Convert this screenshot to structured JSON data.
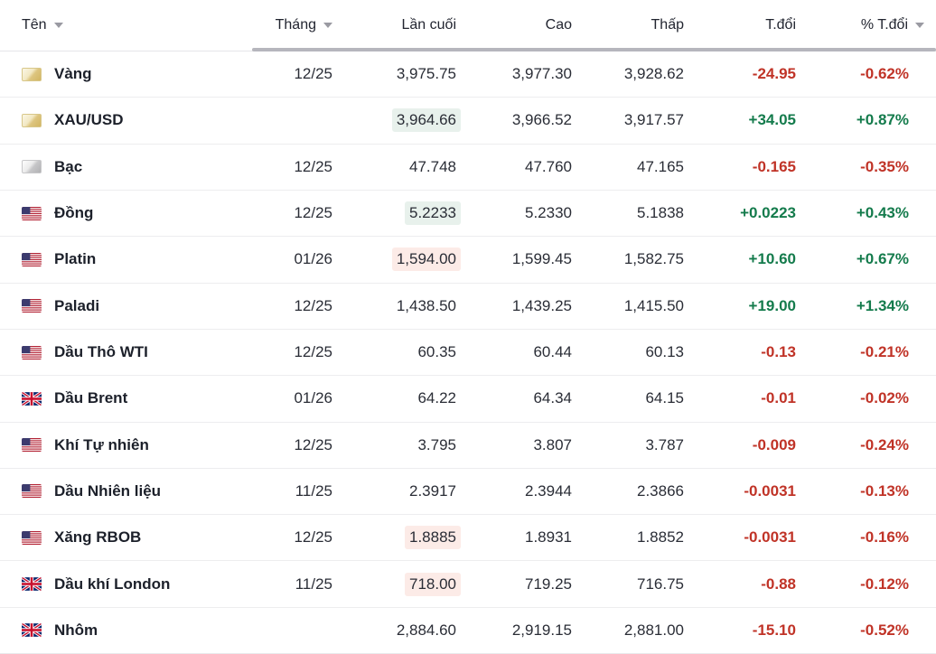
{
  "table": {
    "columns": [
      {
        "key": "name",
        "label": "Tên",
        "sortable": true
      },
      {
        "key": "month",
        "label": "Tháng",
        "sortable": true
      },
      {
        "key": "last",
        "label": "Lần cuối",
        "sortable": false
      },
      {
        "key": "high",
        "label": "Cao",
        "sortable": false
      },
      {
        "key": "low",
        "label": "Thấp",
        "sortable": false
      },
      {
        "key": "change",
        "label": "T.đổi",
        "sortable": false
      },
      {
        "key": "pct",
        "label": "% T.đổi",
        "sortable": true
      }
    ],
    "rows": [
      {
        "name": "Vàng",
        "icon": "gold-bar",
        "month": "12/25",
        "last": "3,975.75",
        "high": "3,977.30",
        "low": "3,928.62",
        "change": "-24.95",
        "pct": "-0.62%",
        "direction": "down",
        "last_highlight": ""
      },
      {
        "name": "XAU/USD",
        "icon": "gold-bar",
        "month": "",
        "last": "3,964.66",
        "high": "3,966.52",
        "low": "3,917.57",
        "change": "+34.05",
        "pct": "+0.87%",
        "direction": "up",
        "last_highlight": "up"
      },
      {
        "name": "Bạc",
        "icon": "silver-bar",
        "month": "12/25",
        "last": "47.748",
        "high": "47.760",
        "low": "47.165",
        "change": "-0.165",
        "pct": "-0.35%",
        "direction": "down",
        "last_highlight": ""
      },
      {
        "name": "Đồng",
        "icon": "us-flag",
        "month": "12/25",
        "last": "5.2233",
        "high": "5.2330",
        "low": "5.1838",
        "change": "+0.0223",
        "pct": "+0.43%",
        "direction": "up",
        "last_highlight": "up"
      },
      {
        "name": "Platin",
        "icon": "us-flag",
        "month": "01/26",
        "last": "1,594.00",
        "high": "1,599.45",
        "low": "1,582.75",
        "change": "+10.60",
        "pct": "+0.67%",
        "direction": "up",
        "last_highlight": "down"
      },
      {
        "name": "Paladi",
        "icon": "us-flag",
        "month": "12/25",
        "last": "1,438.50",
        "high": "1,439.25",
        "low": "1,415.50",
        "change": "+19.00",
        "pct": "+1.34%",
        "direction": "up",
        "last_highlight": ""
      },
      {
        "name": "Dầu Thô WTI",
        "icon": "us-flag",
        "month": "12/25",
        "last": "60.35",
        "high": "60.44",
        "low": "60.13",
        "change": "-0.13",
        "pct": "-0.21%",
        "direction": "down",
        "last_highlight": ""
      },
      {
        "name": "Dầu Brent",
        "icon": "uk-flag",
        "month": "01/26",
        "last": "64.22",
        "high": "64.34",
        "low": "64.15",
        "change": "-0.01",
        "pct": "-0.02%",
        "direction": "down",
        "last_highlight": ""
      },
      {
        "name": "Khí Tự nhiên",
        "icon": "us-flag",
        "month": "12/25",
        "last": "3.795",
        "high": "3.807",
        "low": "3.787",
        "change": "-0.009",
        "pct": "-0.24%",
        "direction": "down",
        "last_highlight": ""
      },
      {
        "name": "Dầu Nhiên liệu",
        "icon": "us-flag",
        "month": "11/25",
        "last": "2.3917",
        "high": "2.3944",
        "low": "2.3866",
        "change": "-0.0031",
        "pct": "-0.13%",
        "direction": "down",
        "last_highlight": ""
      },
      {
        "name": "Xăng RBOB",
        "icon": "us-flag",
        "month": "12/25",
        "last": "1.8885",
        "high": "1.8931",
        "low": "1.8852",
        "change": "-0.0031",
        "pct": "-0.16%",
        "direction": "down",
        "last_highlight": "down"
      },
      {
        "name": "Dầu khí London",
        "icon": "uk-flag",
        "month": "11/25",
        "last": "718.00",
        "high": "719.25",
        "low": "716.75",
        "change": "-0.88",
        "pct": "-0.12%",
        "direction": "down",
        "last_highlight": "down"
      },
      {
        "name": "Nhôm",
        "icon": "uk-flag",
        "month": "",
        "last": "2,884.60",
        "high": "2,919.15",
        "low": "2,881.00",
        "change": "-15.10",
        "pct": "-0.52%",
        "direction": "down",
        "last_highlight": ""
      }
    ]
  },
  "colors": {
    "positive_text": "#147b4c",
    "negative_text": "#c03327",
    "positive_highlight_bg": "#e8f1ec",
    "negative_highlight_bg": "#fcebe7",
    "divider": "#ededef",
    "header_indicator": "#b6b6bd"
  }
}
